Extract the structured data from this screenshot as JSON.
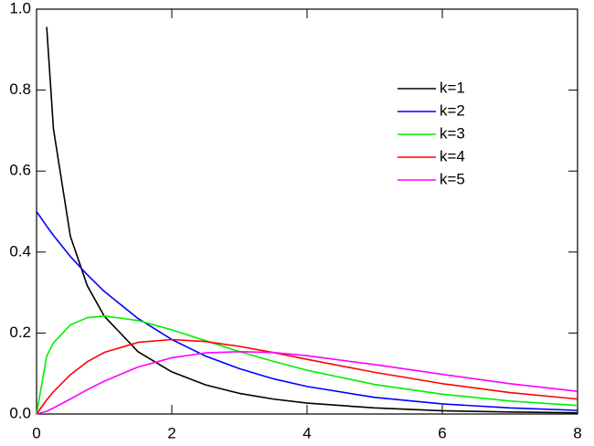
{
  "chart_data": {
    "type": "line",
    "x": [
      0,
      0.15,
      0.25,
      0.5,
      0.75,
      1,
      1.5,
      2,
      2.5,
      3,
      3.5,
      4,
      5,
      6,
      7,
      8
    ],
    "series": [
      {
        "name": "k=1",
        "color": "#000000",
        "values": [
          null,
          0.956,
          0.704,
          0.439,
          0.317,
          0.242,
          0.154,
          0.104,
          0.072,
          0.051,
          0.037,
          0.027,
          0.015,
          0.008,
          0.005,
          0.003
        ]
      },
      {
        "name": "k=2",
        "color": "#0000ff",
        "values": [
          0.5,
          0.464,
          0.441,
          0.389,
          0.344,
          0.303,
          0.236,
          0.184,
          0.143,
          0.112,
          0.087,
          0.068,
          0.041,
          0.025,
          0.015,
          0.009
        ]
      },
      {
        "name": "k=3",
        "color": "#00ee00",
        "values": [
          0,
          0.143,
          0.176,
          0.22,
          0.238,
          0.242,
          0.231,
          0.208,
          0.181,
          0.154,
          0.13,
          0.108,
          0.073,
          0.049,
          0.032,
          0.021
        ]
      },
      {
        "name": "k=4",
        "color": "#ff0000",
        "values": [
          0,
          0.035,
          0.055,
          0.097,
          0.129,
          0.152,
          0.177,
          0.184,
          0.179,
          0.167,
          0.152,
          0.135,
          0.103,
          0.075,
          0.053,
          0.037
        ]
      },
      {
        "name": "k=5",
        "color": "#ff00ff",
        "values": [
          0,
          0.007,
          0.015,
          0.037,
          0.06,
          0.081,
          0.116,
          0.139,
          0.151,
          0.154,
          0.152,
          0.144,
          0.122,
          0.098,
          0.075,
          0.056
        ]
      }
    ],
    "xlim": [
      0,
      8
    ],
    "xticks": [
      0,
      2,
      4,
      6,
      8
    ],
    "ylim": [
      0,
      1
    ],
    "yticks": [
      {
        "value": 0,
        "label": "0.0"
      },
      {
        "value": 0.2,
        "label": "0.2"
      },
      {
        "value": 0.4,
        "label": "0.4"
      },
      {
        "value": 0.6,
        "label": "0.6"
      },
      {
        "value": 0.8,
        "label": "0.8"
      },
      {
        "value": 1,
        "label": "1.0"
      }
    ],
    "legend": "upper right"
  }
}
